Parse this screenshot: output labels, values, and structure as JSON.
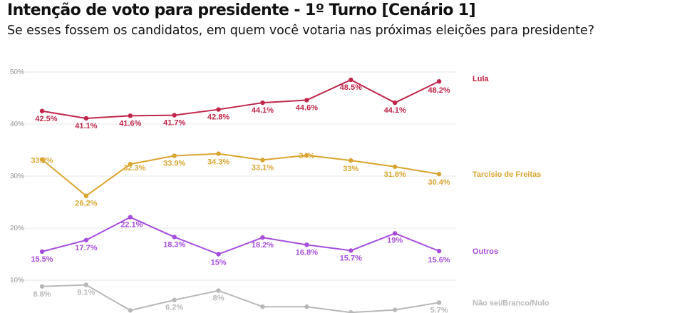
{
  "header": {
    "title": "Intenção de voto para presidente - 1º Turno [Cenário 1]",
    "subtitle": "Se esses fossem os candidatos, em quem você votaria nas próximas eleições para presidente?"
  },
  "chart_data": {
    "type": "line",
    "title": "Intenção de voto para presidente - 1º Turno [Cenário 1]",
    "subtitle": "Se esses fossem os candidatos, em quem você votaria nas próximas eleições para presidente?",
    "xlabel": "",
    "ylabel": "",
    "ylim": [
      0,
      50
    ],
    "y_ticks": [
      "10%",
      "20%",
      "30%",
      "40%",
      "50%"
    ],
    "grid": true,
    "legend": "labels at right end of each line",
    "n_points": 10,
    "series": [
      {
        "name": "Lula",
        "color": "#c0264a",
        "values": [
          42.5,
          41.1,
          41.6,
          41.7,
          42.8,
          44.1,
          44.6,
          48.5,
          44.1,
          48.2
        ],
        "labels": [
          "42.5%",
          "41.1%",
          "41.6%",
          "41.7%",
          "42.8%",
          "44.1%",
          "44.6%",
          "48.5%",
          "44.1%",
          "48.2%"
        ]
      },
      {
        "name": "Tarcísio de Freitas",
        "color": "#d9a530",
        "values": [
          33.2,
          26.2,
          32.3,
          33.9,
          34.3,
          33.1,
          34,
          33,
          31.8,
          30.4
        ],
        "labels": [
          "33.2%",
          "26.2%",
          "32.3%",
          "33.9%",
          "34.3%",
          "33.1%",
          "34%",
          "33%",
          "31.8%",
          "30.4%"
        ]
      },
      {
        "name": "Outros",
        "color": "#a64ddc",
        "values": [
          15.5,
          17.7,
          22.1,
          18.3,
          15,
          18.2,
          16.8,
          15.7,
          19,
          15.6
        ],
        "labels": [
          "15.5%",
          "17.7%",
          "22.1%",
          "18.3%",
          "15%",
          "18.2%",
          "16.8%",
          "15.7%",
          "19%",
          "15.6%"
        ]
      },
      {
        "name": "Não sei/Branco/Nulo",
        "color": "#b8b8b8",
        "values": [
          8.8,
          9.1,
          4.2,
          6.2,
          8,
          4.9,
          4.9,
          3.8,
          4.3,
          5.7
        ],
        "labels": [
          "8.8%",
          "9.1%",
          "",
          "6.2%",
          "8%",
          "",
          "",
          "",
          "",
          "5.7%"
        ]
      }
    ]
  }
}
